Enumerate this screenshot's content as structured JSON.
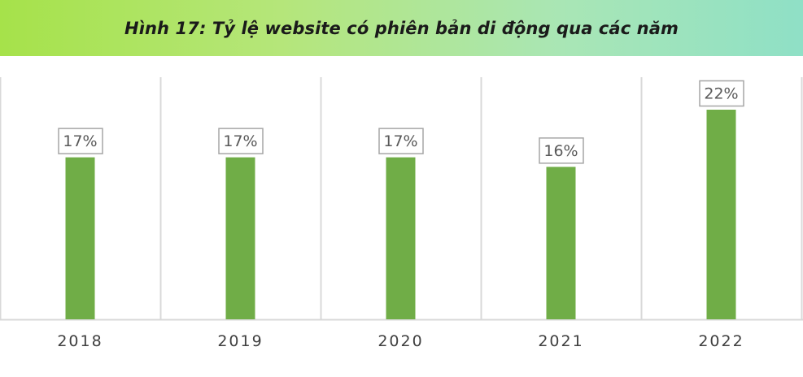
{
  "title": "Hình 17: Tỷ lệ website có phiên bản di động qua các năm",
  "colors": {
    "bar": "#70ad47",
    "gridline": "#d9d9d9",
    "label_border": "#a6a6a6",
    "label_text": "#595959",
    "axis_text": "#404040"
  },
  "chart_data": {
    "type": "bar",
    "categories": [
      "2018",
      "2019",
      "2020",
      "2021",
      "2022"
    ],
    "values": [
      17,
      17,
      17,
      16,
      22
    ],
    "data_labels": [
      "17%",
      "17%",
      "17%",
      "16%",
      "22%"
    ],
    "title": "Hình 17: Tỷ lệ website có phiên bản di động qua các năm",
    "xlabel": "",
    "ylabel": "",
    "ylim": [
      0,
      24
    ],
    "grid": "vertical",
    "legend": "none"
  }
}
